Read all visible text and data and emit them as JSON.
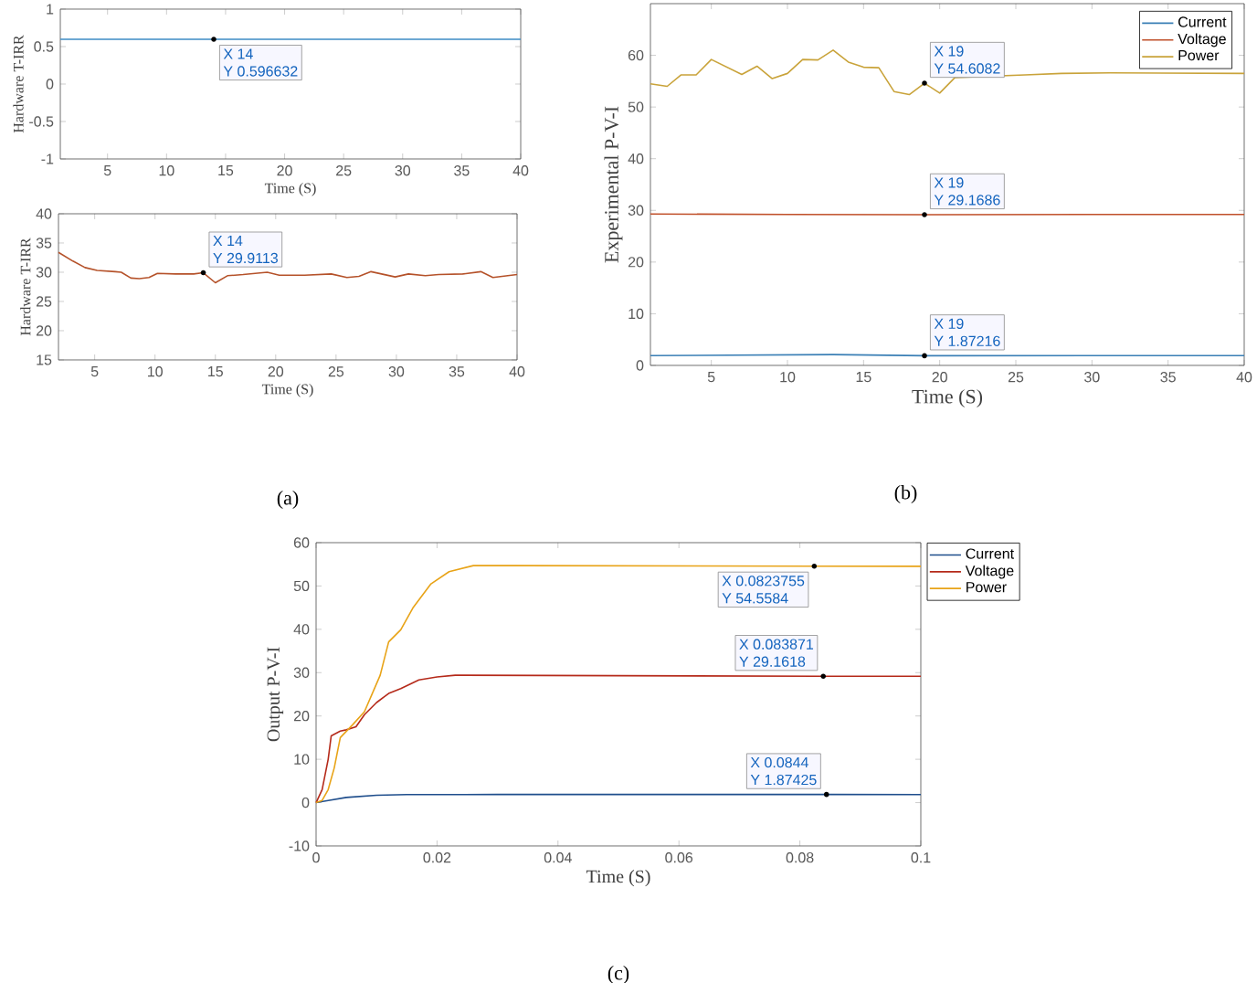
{
  "chart_data": [
    {
      "type": "line",
      "xlabel": "Time (S)",
      "ylabel": "Hardware T-IRR",
      "xlim": [
        1,
        40
      ],
      "ylim": [
        -1,
        1
      ],
      "xticks": [
        5,
        10,
        15,
        20,
        25,
        30,
        35,
        40
      ],
      "yticks": [
        -1,
        -0.5,
        0,
        0.5,
        1
      ],
      "series": [
        {
          "color": "#3d8bc4",
          "x": [
            1,
            14,
            40
          ],
          "values": [
            0.596632,
            0.596632,
            0.596632
          ]
        }
      ],
      "annotations": [
        {
          "text": "X 14",
          "x": 14,
          "y": 0.596632
        },
        {
          "text": "Y 0.596632",
          "x": 14,
          "y": 0.596632
        }
      ]
    },
    {
      "type": "line",
      "xlabel": "Time (S)",
      "ylabel": "Hardware T-IRR",
      "xlim": [
        2,
        40
      ],
      "ylim": [
        15,
        40
      ],
      "xticks": [
        5,
        10,
        15,
        20,
        25,
        30,
        35,
        40
      ],
      "yticks": [
        15,
        20,
        25,
        30,
        35,
        40
      ],
      "series": [
        {
          "color": "#b5522a",
          "x": [
            2,
            3.2,
            4.2,
            5.2,
            6.7,
            7.2,
            8.0,
            8.7,
            9.5,
            10.2,
            11.7,
            13.2,
            14,
            15,
            16,
            17.3,
            19.3,
            20.3,
            22.4,
            24.6,
            25.9,
            26.9,
            27.9,
            29.9,
            31,
            32.4,
            33.5,
            35.5,
            37,
            38,
            40
          ],
          "values": [
            33.4,
            31.9,
            30.8,
            30.3,
            30.1,
            30.0,
            29.0,
            28.9,
            29.1,
            29.8,
            29.7,
            29.7,
            29.9113,
            28.2,
            29.4,
            29.6,
            30.0,
            29.5,
            29.5,
            29.7,
            29.1,
            29.3,
            30.1,
            29.2,
            29.7,
            29.4,
            29.6,
            29.7,
            30.1,
            29.1,
            29.6
          ]
        }
      ],
      "annotations": [
        {
          "text": "X 14",
          "x": 14,
          "y": 29.9113
        },
        {
          "text": "Y 29.9113",
          "x": 14,
          "y": 29.9113
        },
        "(a)"
      ]
    },
    {
      "type": "line",
      "xlabel": "Time (S)",
      "ylabel": "Experimental P-V-I",
      "xlim": [
        1,
        40
      ],
      "ylim": [
        0,
        70
      ],
      "xticks": [
        5,
        10,
        15,
        20,
        25,
        30,
        35,
        40
      ],
      "yticks": [
        0,
        10,
        20,
        30,
        40,
        50,
        60
      ],
      "legend": "top right",
      "series": [
        {
          "name": "Current",
          "color": "#3a7fb5",
          "x": [
            1,
            7,
            13,
            19,
            30,
            40
          ],
          "values": [
            1.9,
            2.0,
            2.1,
            1.87216,
            1.9,
            1.9
          ]
        },
        {
          "name": "Voltage",
          "color": "#c0502a",
          "x": [
            1,
            10,
            19,
            30,
            40
          ],
          "values": [
            29.3,
            29.2,
            29.1686,
            29.2,
            29.2
          ]
        },
        {
          "name": "Power",
          "color": "#c9a33a",
          "x": [
            1,
            2.1,
            3,
            4,
            5,
            7,
            8,
            9,
            10,
            11,
            12,
            13,
            14,
            15,
            16,
            17,
            18,
            19,
            20,
            21,
            25.6,
            28,
            31.2,
            40
          ],
          "values": [
            54.5,
            54.0,
            56.2,
            56.2,
            59.2,
            56.3,
            57.9,
            55.5,
            56.5,
            59.2,
            59.1,
            61.0,
            58.7,
            57.7,
            57.6,
            53.0,
            52.4,
            54.6082,
            52.7,
            55.7,
            56.2,
            56.5,
            56.6,
            56.5
          ]
        }
      ],
      "annotations": [
        {
          "text": "X 19",
          "x": 19,
          "y": 54.6082
        },
        {
          "text": "Y 54.6082",
          "x": 19,
          "y": 54.6082
        },
        {
          "text": "X 19",
          "x": 19,
          "y": 29.1686
        },
        {
          "text": "Y 29.1686",
          "x": 19,
          "y": 29.1686
        },
        {
          "text": "X 19",
          "x": 19,
          "y": 1.87216
        },
        {
          "text": "Y 1.87216",
          "x": 19,
          "y": 1.87216
        },
        "(b)"
      ]
    },
    {
      "type": "line",
      "xlabel": "Time (S)",
      "ylabel": "Output P-V-I",
      "xlim": [
        0,
        0.1
      ],
      "ylim": [
        -10,
        60
      ],
      "xticks": [
        0,
        0.02,
        0.04,
        0.06,
        0.08,
        0.1
      ],
      "yticks": [
        -10,
        0,
        10,
        20,
        30,
        40,
        50,
        60
      ],
      "legend": "top right",
      "series": [
        {
          "name": "Current",
          "color": "#1f4e8c",
          "x": [
            0,
            0.002,
            0.005,
            0.01,
            0.015,
            0.03,
            0.0844,
            0.1
          ],
          "values": [
            0,
            0.5,
            1.2,
            1.7,
            1.85,
            1.88,
            1.87425,
            1.87
          ]
        },
        {
          "name": "Voltage",
          "color": "#b52a1a",
          "x": [
            0,
            0.001,
            0.002,
            0.0025,
            0.004,
            0.005,
            0.0066,
            0.008,
            0.01,
            0.012,
            0.014,
            0.017,
            0.02,
            0.023,
            0.083871,
            0.1
          ],
          "values": [
            0,
            3,
            10,
            15.4,
            16.5,
            16.8,
            17.5,
            20.3,
            23.1,
            25.2,
            26.3,
            28.3,
            29.0,
            29.4,
            29.1618,
            29.16
          ]
        },
        {
          "name": "Power",
          "color": "#e8a317",
          "x": [
            0,
            0.001,
            0.002,
            0.003,
            0.004,
            0.006,
            0.008,
            0.0106,
            0.012,
            0.014,
            0.016,
            0.019,
            0.022,
            0.026,
            0.033,
            0.0823755,
            0.1
          ],
          "values": [
            0,
            0.5,
            3,
            8,
            15,
            17.9,
            21,
            29.4,
            37.1,
            39.9,
            44.9,
            50.5,
            53.3,
            54.7,
            54.7,
            54.5584,
            54.55
          ]
        }
      ],
      "annotations": [
        {
          "text": "X 0.0823755",
          "x": 0.0823755,
          "y": 54.5584
        },
        {
          "text": "Y 54.5584",
          "x": 0.0823755,
          "y": 54.5584
        },
        {
          "text": "X 0.083871",
          "x": 0.083871,
          "y": 29.1618
        },
        {
          "text": "Y 29.1618",
          "x": 0.083871,
          "y": 29.1618
        },
        {
          "text": "X 0.0844",
          "x": 0.0844,
          "y": 1.87425
        },
        {
          "text": "Y 1.87425",
          "x": 0.0844,
          "y": 1.87425
        },
        "(c)"
      ]
    }
  ]
}
